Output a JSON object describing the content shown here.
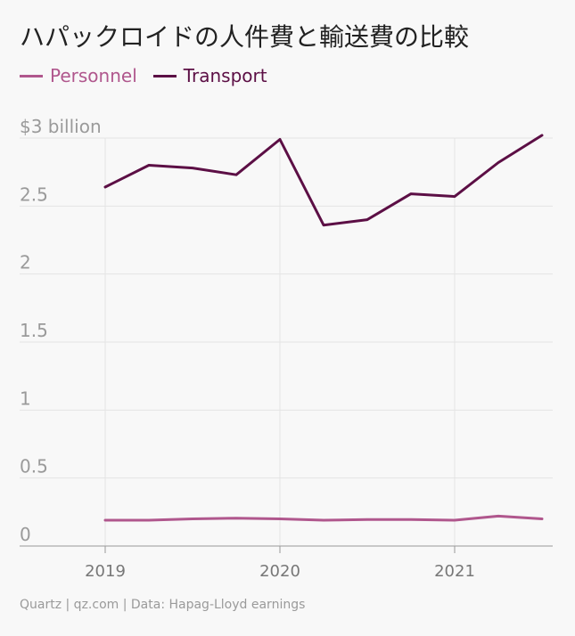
{
  "chart_data": {
    "type": "line",
    "title": "ハパックロイドの人件費と輸送費の比較",
    "ylabel": "",
    "xlabel": "",
    "ylim": [
      0,
      3
    ],
    "y_ticks": [
      "0",
      "0.5",
      "1",
      "1.5",
      "2",
      "2.5",
      "$3 billion"
    ],
    "y_tick_values": [
      0,
      0.5,
      1,
      1.5,
      2,
      2.5,
      3
    ],
    "x_ticks": [
      "2019",
      "2020",
      "2021"
    ],
    "x": [
      "2019Q1",
      "2019Q2",
      "2019Q3",
      "2019Q4",
      "2020Q1",
      "2020Q2",
      "2020Q3",
      "2020Q4",
      "2021Q1",
      "2021Q2",
      "2021Q3"
    ],
    "series": [
      {
        "name": "Personnel",
        "color": "#b0578d",
        "values": [
          0.19,
          0.19,
          0.2,
          0.205,
          0.2,
          0.19,
          0.195,
          0.195,
          0.19,
          0.22,
          0.2
        ]
      },
      {
        "name": "Transport",
        "color": "#5c0f45",
        "values": [
          2.64,
          2.8,
          2.78,
          2.73,
          2.99,
          2.36,
          2.4,
          2.59,
          2.57,
          2.82,
          3.02
        ]
      }
    ],
    "source": "Quartz | qz.com | Data: Hapag-Lloyd earnings"
  }
}
